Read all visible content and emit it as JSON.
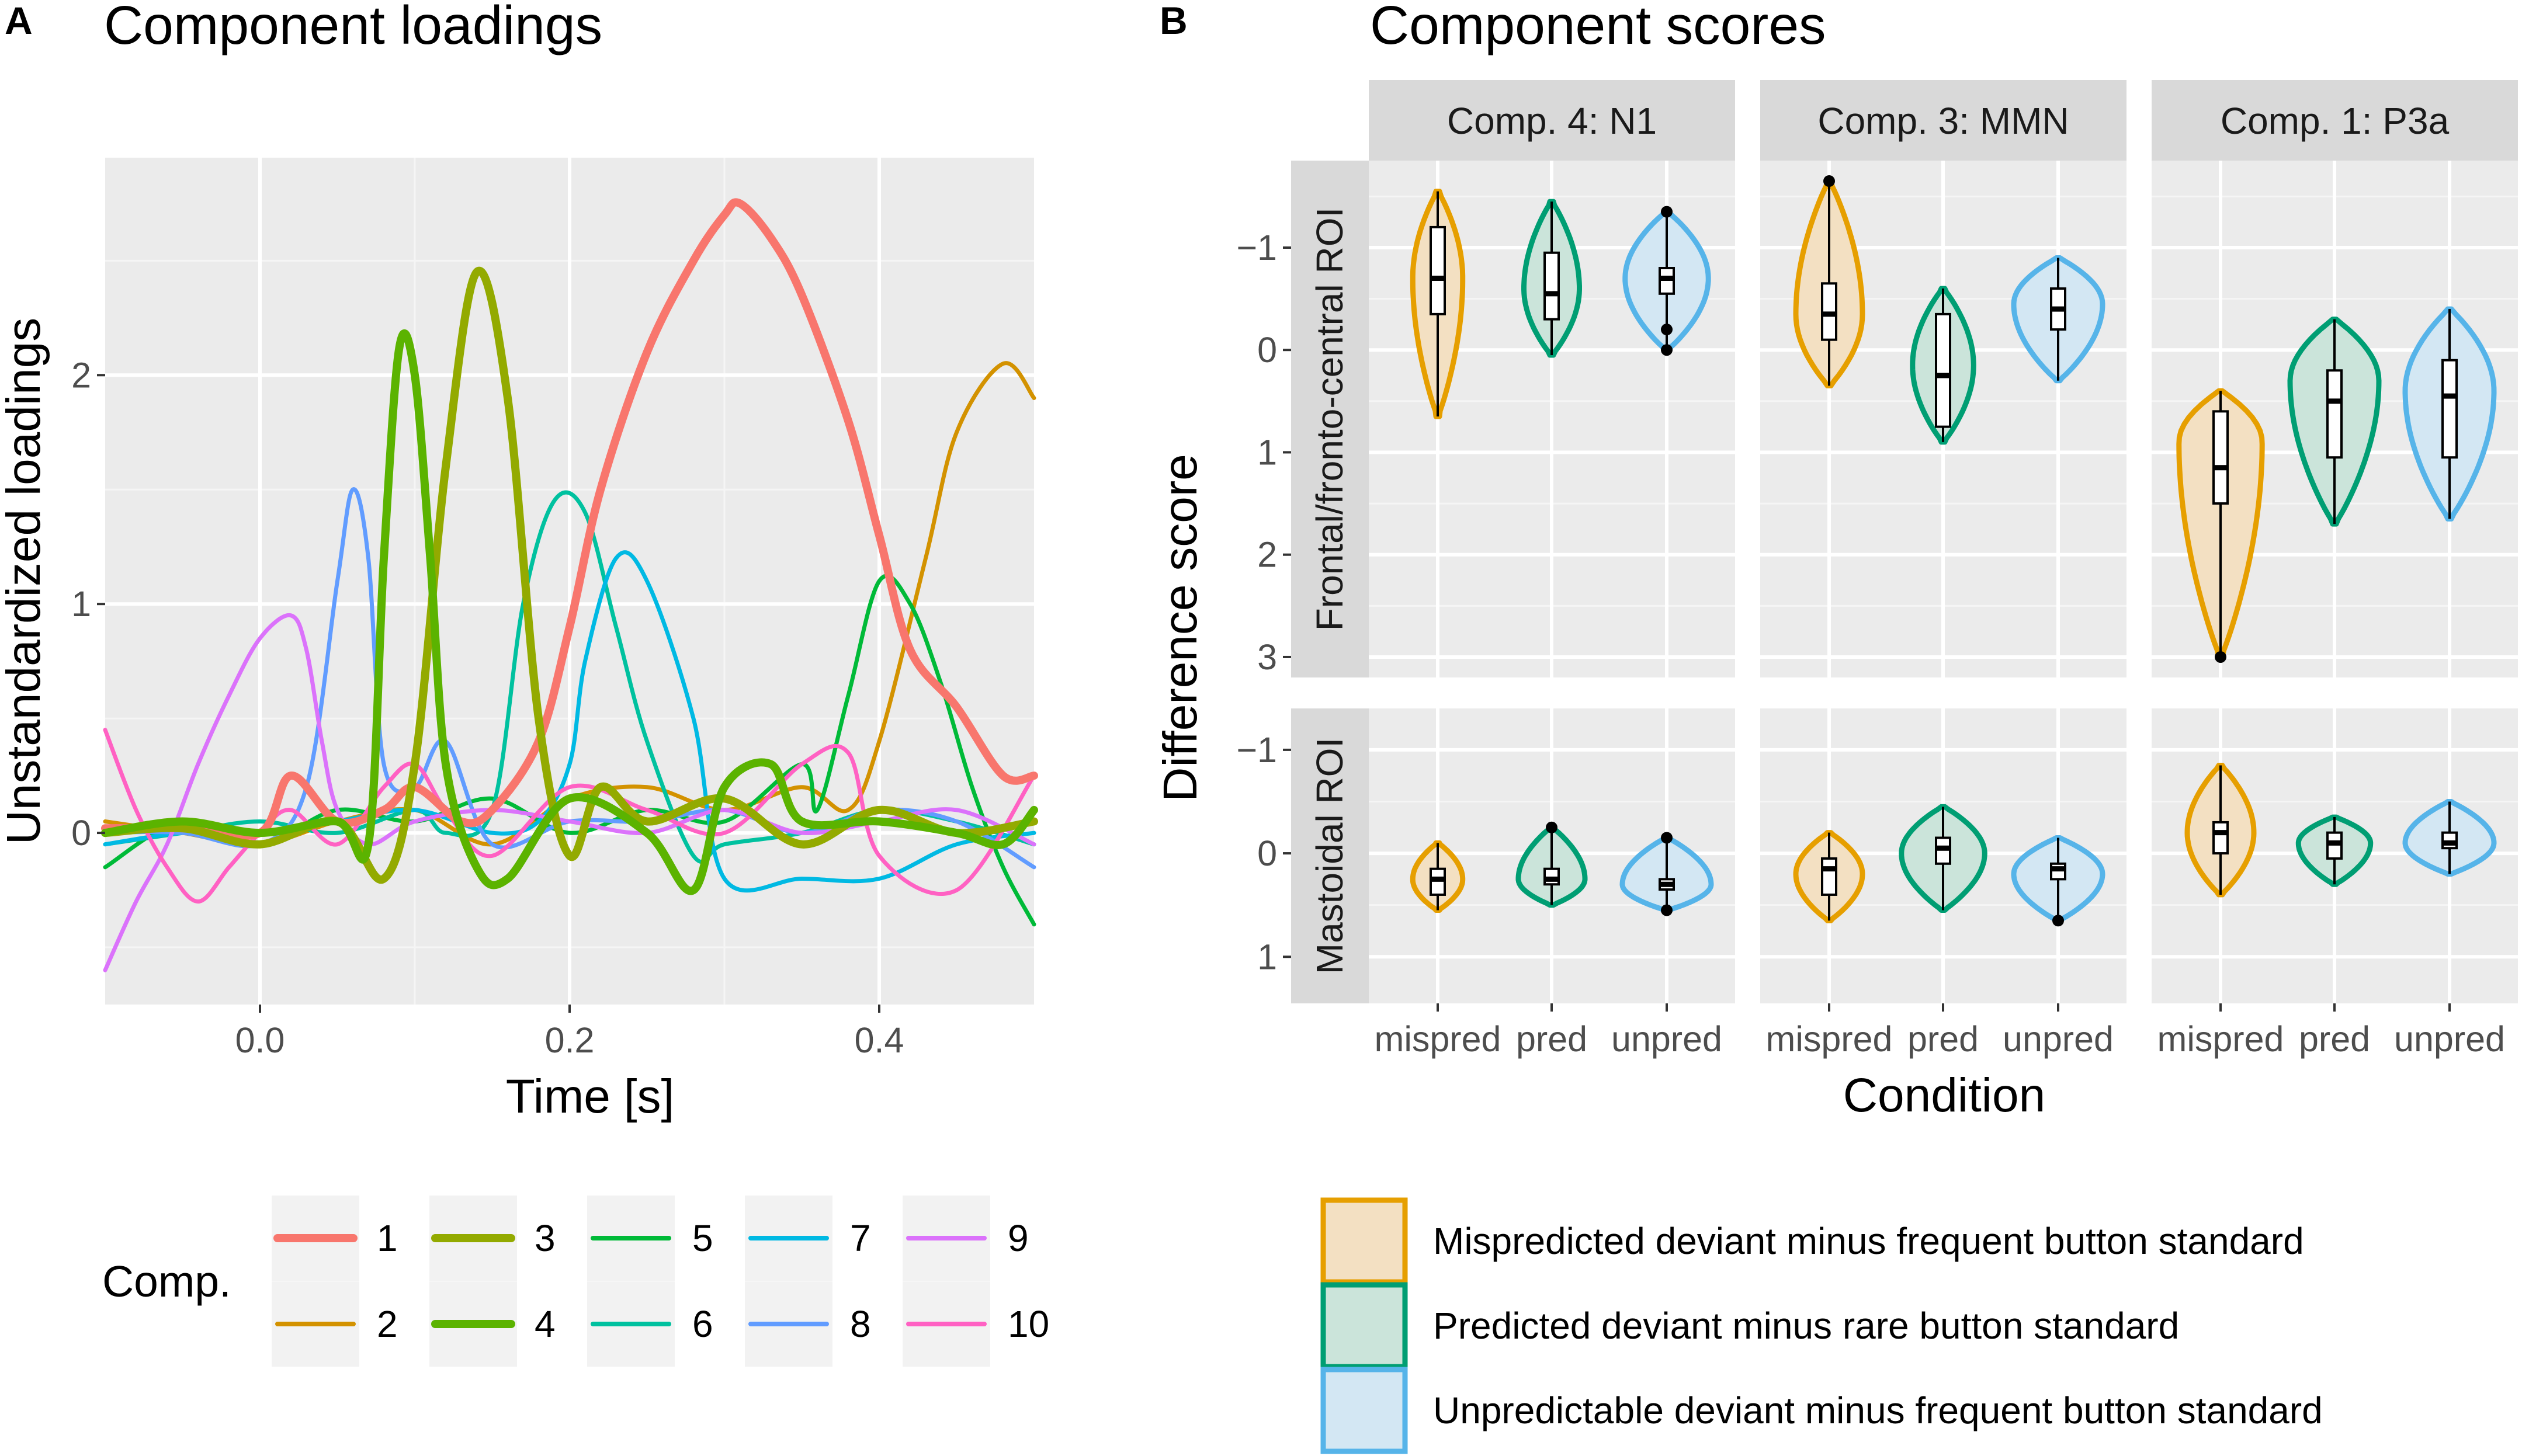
{
  "panel_a": {
    "letter": "A",
    "title": "Component loadings",
    "legend_title": "Comp."
  },
  "panel_b": {
    "letter": "B",
    "title": "Component scores",
    "legend": [
      {
        "label": "Mispredicted deviant minus frequent button standard",
        "color": "#E69F00",
        "fill": "#F3E0C2"
      },
      {
        "label": "Predicted deviant minus rare button standard",
        "color": "#009E73",
        "fill": "#CBE4DA"
      },
      {
        "label": "Unpredictable deviant minus frequent button standard",
        "color": "#56B4E9",
        "fill": "#D3E7F3"
      }
    ]
  },
  "chart_data": [
    {
      "type": "line",
      "title": "Component loadings",
      "xlabel": "Time [s]",
      "ylabel": "Unstandardized loadings",
      "xlim": [
        -0.1,
        0.5
      ],
      "ylim": [
        -0.75,
        2.95
      ],
      "xticks": [
        0.0,
        0.2,
        0.4
      ],
      "xtick_labels": [
        "0.0",
        "0.2",
        "0.4"
      ],
      "yticks": [
        0,
        1,
        2
      ],
      "ytick_labels": [
        "0",
        "1",
        "2"
      ],
      "legend_title": "Comp.",
      "series": [
        {
          "name": "1",
          "color": "#F8766D",
          "thick": true,
          "x": [
            -0.1,
            -0.05,
            0,
            0.02,
            0.05,
            0.08,
            0.1,
            0.13,
            0.15,
            0.18,
            0.2,
            0.22,
            0.25,
            0.28,
            0.3,
            0.31,
            0.33,
            0.35,
            0.38,
            0.4,
            0.42,
            0.45,
            0.48,
            0.5
          ],
          "y": [
            0.02,
            0.02,
            0.0,
            0.25,
            0.05,
            0.1,
            0.2,
            0.05,
            0.1,
            0.4,
            0.9,
            1.5,
            2.1,
            2.5,
            2.7,
            2.75,
            2.6,
            2.35,
            1.8,
            1.3,
            0.8,
            0.55,
            0.25,
            0.25
          ]
        },
        {
          "name": "2",
          "color": "#D39200",
          "thick": false,
          "x": [
            -0.1,
            -0.05,
            0,
            0.05,
            0.1,
            0.15,
            0.2,
            0.25,
            0.3,
            0.35,
            0.38,
            0.4,
            0.43,
            0.45,
            0.48,
            0.5
          ],
          "y": [
            0.05,
            0.0,
            -0.05,
            0.05,
            0.1,
            -0.05,
            0.15,
            0.2,
            0.1,
            0.2,
            0.1,
            0.4,
            1.2,
            1.75,
            2.05,
            1.9
          ]
        },
        {
          "name": "3",
          "color": "#93AA00",
          "thick": true,
          "x": [
            -0.1,
            -0.05,
            0,
            0.05,
            0.08,
            0.1,
            0.12,
            0.14,
            0.16,
            0.18,
            0.2,
            0.22,
            0.25,
            0.3,
            0.35,
            0.4,
            0.45,
            0.5
          ],
          "y": [
            0.0,
            0.02,
            -0.05,
            0.05,
            -0.2,
            0.3,
            1.6,
            2.45,
            1.9,
            0.5,
            -0.1,
            0.2,
            0.05,
            0.15,
            -0.05,
            0.1,
            0.0,
            0.05
          ]
        },
        {
          "name": "4",
          "color": "#5BB300",
          "thick": true,
          "x": [
            -0.1,
            -0.05,
            0,
            0.05,
            0.07,
            0.08,
            0.09,
            0.1,
            0.11,
            0.12,
            0.14,
            0.16,
            0.2,
            0.25,
            0.28,
            0.3,
            0.33,
            0.35,
            0.4,
            0.45,
            0.48,
            0.5
          ],
          "y": [
            0.0,
            0.05,
            0.0,
            0.05,
            -0.05,
            1.2,
            2.12,
            2.0,
            1.2,
            0.3,
            -0.15,
            -0.2,
            0.15,
            0.0,
            -0.25,
            0.2,
            0.3,
            0.05,
            0.05,
            0.0,
            -0.05,
            0.1
          ]
        },
        {
          "name": "5",
          "color": "#00BA38",
          "thick": false,
          "x": [
            -0.1,
            -0.05,
            0,
            0.05,
            0.1,
            0.15,
            0.2,
            0.25,
            0.3,
            0.35,
            0.36,
            0.38,
            0.4,
            0.42,
            0.44,
            0.46,
            0.48,
            0.5
          ],
          "y": [
            -0.15,
            0.05,
            -0.05,
            0.1,
            0.05,
            0.15,
            0.0,
            0.1,
            0.05,
            0.3,
            0.1,
            0.6,
            1.1,
            1.0,
            0.65,
            0.2,
            -0.15,
            -0.4
          ]
        },
        {
          "name": "6",
          "color": "#00C19F",
          "thick": false,
          "x": [
            -0.1,
            -0.05,
            0,
            0.05,
            0.1,
            0.12,
            0.15,
            0.17,
            0.19,
            0.21,
            0.23,
            0.25,
            0.28,
            0.3,
            0.35,
            0.4,
            0.45,
            0.5
          ],
          "y": [
            -0.05,
            0.0,
            0.05,
            0.0,
            0.1,
            0.0,
            0.1,
            1.0,
            1.45,
            1.4,
            0.9,
            0.4,
            -0.1,
            -0.05,
            0.0,
            0.1,
            0.05,
            -0.05
          ]
        },
        {
          "name": "7",
          "color": "#00B9E3",
          "thick": false,
          "x": [
            -0.1,
            -0.05,
            0,
            0.05,
            0.1,
            0.15,
            0.18,
            0.2,
            0.21,
            0.23,
            0.25,
            0.28,
            0.3,
            0.35,
            0.4,
            0.45,
            0.5
          ],
          "y": [
            -0.05,
            0.0,
            0.0,
            0.05,
            0.1,
            0.0,
            0.05,
            0.3,
            0.75,
            1.2,
            1.1,
            0.5,
            -0.2,
            -0.2,
            -0.2,
            -0.05,
            0.0
          ]
        },
        {
          "name": "8",
          "color": "#619CFF",
          "thick": false,
          "x": [
            -0.1,
            -0.05,
            0,
            0.03,
            0.05,
            0.06,
            0.07,
            0.08,
            0.1,
            0.12,
            0.15,
            0.2,
            0.25,
            0.3,
            0.35,
            0.4,
            0.45,
            0.5
          ],
          "y": [
            0.0,
            0.0,
            -0.05,
            0.2,
            1.1,
            1.5,
            1.2,
            0.3,
            0.2,
            0.4,
            -0.05,
            0.05,
            0.05,
            0.1,
            0.0,
            0.1,
            0.05,
            -0.15
          ]
        },
        {
          "name": "9",
          "color": "#DB72FB",
          "thick": false,
          "x": [
            -0.1,
            -0.08,
            -0.06,
            -0.04,
            -0.02,
            0,
            0.02,
            0.03,
            0.04,
            0.05,
            0.07,
            0.1,
            0.15,
            0.2,
            0.25,
            0.3,
            0.35,
            0.4,
            0.45,
            0.5
          ],
          "y": [
            -0.6,
            -0.3,
            -0.05,
            0.3,
            0.6,
            0.85,
            0.95,
            0.8,
            0.4,
            0.1,
            -0.05,
            0.05,
            0.1,
            0.05,
            0.0,
            0.1,
            0.0,
            0.05,
            0.1,
            -0.05
          ]
        },
        {
          "name": "10",
          "color": "#FF61C3",
          "thick": false,
          "x": [
            -0.1,
            -0.08,
            -0.06,
            -0.04,
            -0.02,
            0,
            0.02,
            0.05,
            0.08,
            0.1,
            0.12,
            0.15,
            0.2,
            0.25,
            0.3,
            0.35,
            0.38,
            0.4,
            0.45,
            0.5
          ],
          "y": [
            0.45,
            0.1,
            -0.15,
            -0.3,
            -0.15,
            0.0,
            0.1,
            -0.05,
            0.2,
            0.3,
            0.1,
            -0.1,
            0.2,
            0.1,
            0.0,
            0.3,
            0.35,
            -0.1,
            -0.25,
            0.25
          ]
        }
      ]
    },
    {
      "type": "violin",
      "title": "Component scores",
      "xlabel": "Condition",
      "ylabel": "Difference score",
      "y_reversed": true,
      "columns": [
        "Comp. 4: N1",
        "Comp. 3: MMN",
        "Comp. 1: P3a"
      ],
      "rows": [
        {
          "label": "Frontal/fronto-central ROI",
          "ylim": [
            -1.85,
            3.2
          ],
          "yticks": [
            -1,
            0,
            1,
            2,
            3
          ],
          "ytick_labels": [
            "−1",
            "0",
            "1",
            "2",
            "3"
          ]
        },
        {
          "label": "Mastoidal ROI",
          "ylim": [
            -1.4,
            1.45
          ],
          "yticks": [
            -1,
            0,
            1
          ],
          "ytick_labels": [
            "−1",
            "0",
            "1"
          ]
        }
      ],
      "categories": [
        "mispred",
        "pred",
        "unpred"
      ],
      "cells": [
        [
          [
            {
              "min": -1.55,
              "max": 0.65,
              "q1": -1.2,
              "median": -0.7,
              "q3": -0.35,
              "peak": -0.7,
              "width": 0.45,
              "outliers": []
            },
            {
              "min": -1.45,
              "max": 0.05,
              "q1": -0.95,
              "median": -0.55,
              "q3": -0.3,
              "peak": -0.6,
              "width": 0.5,
              "outliers": []
            },
            {
              "min": -1.35,
              "max": 0.0,
              "q1": -0.8,
              "median": -0.7,
              "q3": -0.55,
              "peak": -0.7,
              "width": 0.75,
              "outliers": [
                -1.35,
                -0.2,
                0.0
              ]
            }
          ],
          [
            {
              "min": -1.65,
              "max": 0.35,
              "q1": -0.65,
              "median": -0.35,
              "q3": -0.1,
              "peak": -0.35,
              "width": 0.6,
              "outliers": [
                -1.65
              ]
            },
            {
              "min": -0.6,
              "max": 0.9,
              "q1": -0.35,
              "median": 0.25,
              "q3": 0.75,
              "peak": 0.15,
              "width": 0.55,
              "outliers": []
            },
            {
              "min": -0.9,
              "max": 0.3,
              "q1": -0.6,
              "median": -0.4,
              "q3": -0.2,
              "peak": -0.45,
              "width": 0.8,
              "outliers": []
            }
          ],
          [
            {
              "min": 0.4,
              "max": 3.0,
              "q1": 0.6,
              "median": 1.15,
              "q3": 1.5,
              "peak": 0.9,
              "width": 0.75,
              "outliers": [
                3.0
              ]
            },
            {
              "min": -0.3,
              "max": 1.7,
              "q1": 0.2,
              "median": 0.5,
              "q3": 1.05,
              "peak": 0.3,
              "width": 0.8,
              "outliers": []
            },
            {
              "min": -0.4,
              "max": 1.65,
              "q1": 0.1,
              "median": 0.45,
              "q3": 1.05,
              "peak": 0.4,
              "width": 0.8,
              "outliers": []
            }
          ]
        ],
        [
          [
            {
              "min": -0.1,
              "max": 0.55,
              "q1": 0.15,
              "median": 0.25,
              "q3": 0.4,
              "peak": 0.25,
              "width": 0.45,
              "outliers": []
            },
            {
              "min": -0.25,
              "max": 0.5,
              "q1": 0.15,
              "median": 0.25,
              "q3": 0.3,
              "peak": 0.25,
              "width": 0.6,
              "outliers": [
                -0.25
              ]
            },
            {
              "min": -0.15,
              "max": 0.55,
              "q1": 0.25,
              "median": 0.3,
              "q3": 0.35,
              "peak": 0.3,
              "width": 0.8,
              "outliers": [
                -0.15,
                0.55
              ]
            }
          ],
          [
            {
              "min": -0.2,
              "max": 0.65,
              "q1": 0.05,
              "median": 0.15,
              "q3": 0.4,
              "peak": 0.2,
              "width": 0.6,
              "outliers": []
            },
            {
              "min": -0.45,
              "max": 0.55,
              "q1": -0.15,
              "median": -0.05,
              "q3": 0.1,
              "peak": 0.0,
              "width": 0.75,
              "outliers": []
            },
            {
              "min": -0.15,
              "max": 0.65,
              "q1": 0.1,
              "median": 0.15,
              "q3": 0.25,
              "peak": 0.2,
              "width": 0.8,
              "outliers": [
                0.65
              ]
            }
          ],
          [
            {
              "min": -0.85,
              "max": 0.4,
              "q1": -0.3,
              "median": -0.2,
              "q3": 0.0,
              "peak": -0.2,
              "width": 0.6,
              "outliers": []
            },
            {
              "min": -0.35,
              "max": 0.3,
              "q1": -0.2,
              "median": -0.1,
              "q3": 0.05,
              "peak": -0.1,
              "width": 0.65,
              "outliers": []
            },
            {
              "min": -0.5,
              "max": 0.2,
              "q1": -0.2,
              "median": -0.1,
              "q3": -0.05,
              "peak": -0.1,
              "width": 0.8,
              "outliers": []
            }
          ]
        ]
      ]
    }
  ]
}
